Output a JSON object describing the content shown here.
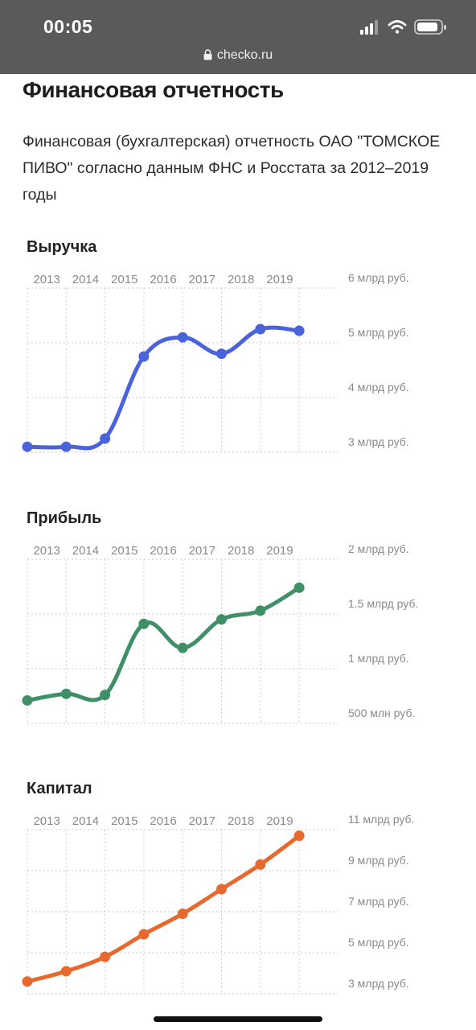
{
  "status_bar": {
    "time": "00:05"
  },
  "browser": {
    "url": "checko.ru"
  },
  "page": {
    "title": "Финансовая отчетность",
    "intro": "Финансовая (бухгалтерская) отчетность ОАО \"ТОМСКОЕ ПИВО\" согласно данным ФНС и Росстата за 2012–2019 годы"
  },
  "chart_data": [
    {
      "type": "line",
      "title": "Выручка",
      "categories": [
        "2013",
        "2014",
        "2015",
        "2016",
        "2017",
        "2018",
        "2019"
      ],
      "x": [
        2012,
        2013,
        2014,
        2015,
        2016,
        2017,
        2018,
        2019
      ],
      "values": [
        3.1,
        3.1,
        3.25,
        4.75,
        5.1,
        4.8,
        5.25,
        5.22
      ],
      "yticks": [
        6,
        5,
        4,
        3
      ],
      "ytick_labels": [
        "6 млрд руб.",
        "5 млрд руб.",
        "4 млрд руб.",
        "3 млрд руб."
      ],
      "ylim": [
        3,
        6
      ],
      "grid": true,
      "color": "#4a63dc"
    },
    {
      "type": "line",
      "title": "Прибыль",
      "categories": [
        "2013",
        "2014",
        "2015",
        "2016",
        "2017",
        "2018",
        "2019"
      ],
      "x": [
        2012,
        2013,
        2014,
        2015,
        2016,
        2017,
        2018,
        2019
      ],
      "values": [
        0.71,
        0.77,
        0.76,
        1.41,
        1.19,
        1.45,
        1.53,
        1.74
      ],
      "yticks": [
        2,
        1.5,
        1,
        0.5
      ],
      "ytick_labels": [
        "2 млрд руб.",
        "1.5 млрд руб.",
        "1 млрд руб.",
        "500 млн руб."
      ],
      "ylim": [
        0.5,
        2
      ],
      "grid": true,
      "color": "#3f9066"
    },
    {
      "type": "line",
      "title": "Капитал",
      "categories": [
        "2013",
        "2014",
        "2015",
        "2016",
        "2017",
        "2018",
        "2019"
      ],
      "x": [
        2012,
        2013,
        2014,
        2015,
        2016,
        2017,
        2018,
        2019
      ],
      "values": [
        3.6,
        4.1,
        4.8,
        5.9,
        6.9,
        8.1,
        9.3,
        10.7
      ],
      "yticks": [
        11,
        9,
        7,
        5,
        3
      ],
      "ytick_labels": [
        "11 млрд руб.",
        "9 млрд руб.",
        "7 млрд руб.",
        "5 млрд руб.",
        "3 млрд руб."
      ],
      "ylim": [
        3,
        11
      ],
      "grid": true,
      "color": "#e8692d"
    }
  ]
}
